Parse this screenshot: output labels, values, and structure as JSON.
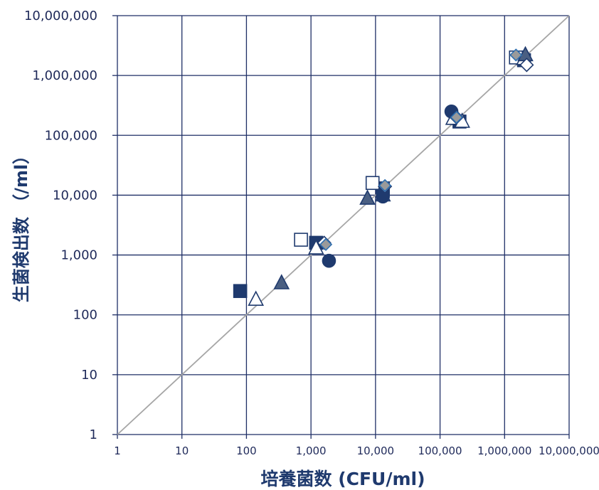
{
  "chart_data": {
    "type": "scatter",
    "xlabel": "培養菌数 (CFU/ml)",
    "ylabel": "生菌検出数 （/ml）",
    "x_scale": "log",
    "y_scale": "log",
    "xlim": [
      1,
      10000000
    ],
    "ylim": [
      1,
      10000000
    ],
    "grid": true,
    "legend": "none",
    "x_ticks": [
      "1",
      "10",
      "100",
      "1,000",
      "10,000",
      "100,000",
      "1,000,000",
      "10,000,000"
    ],
    "y_ticks": [
      "1",
      "10",
      "100",
      "1,000",
      "10,000",
      "100,000",
      "1,000,000",
      "10,000,000"
    ],
    "reference_line": {
      "x": [
        1,
        10000000
      ],
      "y": [
        1,
        10000000
      ],
      "color": "#a6a6a6"
    },
    "colors": {
      "navy": "#1f3a6e",
      "slate": "#4a5f82",
      "steel": "#2e6fb0",
      "gray_fill": "#9a9a9a",
      "grid": "#1f2f66"
    },
    "series": [
      {
        "marker": "square-filled",
        "points": [
          [
            80,
            250
          ],
          [
            1200,
            1600
          ],
          [
            13000,
            13000
          ],
          [
            200000,
            170000
          ],
          [
            2000000,
            1800000
          ]
        ]
      },
      {
        "marker": "square-open",
        "points": [
          [
            700,
            1800
          ],
          [
            9000,
            16000
          ],
          [
            1500000,
            2000000
          ]
        ]
      },
      {
        "marker": "triangle-open",
        "points": [
          [
            140,
            180
          ],
          [
            1200,
            1300
          ],
          [
            13000,
            10000
          ],
          [
            160000,
            190000
          ],
          [
            220000,
            170000
          ],
          [
            2000000,
            1900000
          ]
        ]
      },
      {
        "marker": "triangle-filled",
        "points": [
          [
            350,
            340
          ],
          [
            7500,
            8800
          ],
          [
            2100000,
            2200000
          ]
        ]
      },
      {
        "marker": "circle-filled",
        "points": [
          [
            1900,
            800
          ],
          [
            13000,
            9500
          ],
          [
            150000,
            250000
          ]
        ]
      },
      {
        "marker": "diamond-open",
        "points": [
          [
            1600,
            1600
          ],
          [
            14000,
            14000
          ],
          [
            180000,
            200000
          ],
          [
            2200000,
            1500000
          ]
        ]
      },
      {
        "marker": "diamond-gray",
        "points": [
          [
            1700,
            1500
          ],
          [
            14000,
            14500
          ],
          [
            180000,
            200000
          ],
          [
            1500000,
            2200000
          ]
        ]
      }
    ]
  }
}
